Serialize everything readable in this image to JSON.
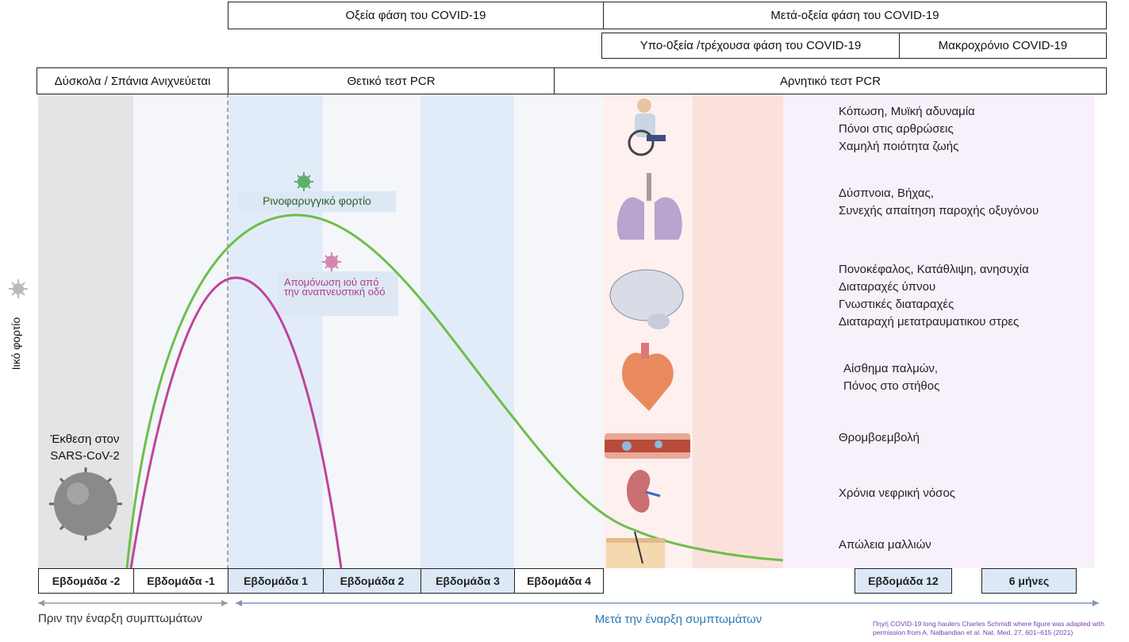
{
  "phases": {
    "acute": "Οξεία φάση του COVID-19",
    "post_acute": "Μετά-οξεία φάση του COVID-19",
    "subacute": "Υπο-0ξεία /τρέχουσα φάση του COVID-19",
    "long": "Μακροχρόνιο COVID-19"
  },
  "pcr": {
    "hard": "Δύσκολα / Σπάνια Ανιχνεύεται",
    "positive": "Θετικό τεστ PCR",
    "negative": "Αρνητικό τεστ PCR"
  },
  "y_label": "Ιικό φορτίο",
  "exposure": "Έκθεση στον SARS-CoV-2",
  "curves": {
    "green_label": "Ρινοφαρυγγικό φορτίο",
    "purple_label": "Απομόνωση ιού από την αναπνευστική οδό",
    "green_color": "#6cbf4a",
    "purple_color": "#c0449a"
  },
  "weeks": [
    "Εβδομάδα -2",
    "Εβδομάδα -1",
    "Εβδομάδα 1",
    "Εβδομάδα 2",
    "Εβδομάδα 3",
    "Εβδομάδα 4",
    "Εβδομάδα 12",
    "6 μήνες"
  ],
  "timeline": {
    "before": "Πριν την έναρξη συμπτωμάτων",
    "after": "Μετά την έναρξη συμπτωμάτων"
  },
  "symptoms": [
    "Κόπωση, Μυϊκή αδυναμία\nΠόνοι στις αρθρώσεις\nΧαμηλή ποιότητα ζωής",
    "Δύσπνοια, Βήχας,\nΣυνεχής απαίτηση παροχής οξυγόνου",
    "Πονοκέφαλος, Κατάθλιψη, ανησυχία\nΔιαταραχές ύπνου\nΓνωστικές διαταραχές\nΔιαταραχή μετατραυματικου στρες",
    "Αίσθημα παλμών,\nΠόνος στο στήθος",
    "Θρομβοεμβολή",
    "Χρόνια νεφρική νόσος",
    "Απώλεια μαλλιών"
  ],
  "source": {
    "line1": "Πηγή COVID-19 long haulers Charles Schmidt where figure was adapted with",
    "line2": "permission from A. Nalbandian et al. Nat. Med. 27, 601–615 (2021)"
  }
}
